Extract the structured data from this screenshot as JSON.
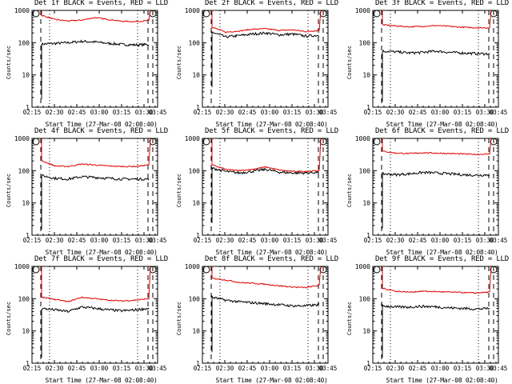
{
  "chart_data": [
    {
      "type": "line",
      "title": "Det 1f BLACK = Events, RED = LLD",
      "ylabel": "Counts/sec",
      "xlabel": "Start Time (27-Mar-08 02:08:40)",
      "xticks": [
        "02:15",
        "02:30",
        "02:45",
        "03:00",
        "03:15",
        "03:30",
        "03:45"
      ],
      "yticks": [
        "1",
        "10",
        "100",
        "1000"
      ],
      "yscale": "log",
      "ylim": [
        1,
        1000
      ],
      "series": [
        {
          "color": "#000000",
          "values": [
            90,
            95,
            100,
            110,
            105,
            95,
            88,
            85,
            88
          ]
        },
        {
          "color": "#e00000",
          "values": [
            700,
            520,
            470,
            500,
            600,
            520,
            460,
            450,
            480
          ]
        }
      ]
    },
    {
      "type": "line",
      "title": "Det 2f BLACK = Events, RED = LLD",
      "ylabel": "Counts/sec",
      "xlabel": "Start Time (27-Mar-08 02:08:40)",
      "xticks": [
        "02:15",
        "02:30",
        "02:45",
        "03:00",
        "03:15",
        "03:30",
        "03:45"
      ],
      "yticks": [
        "1",
        "10",
        "100",
        "1000"
      ],
      "yscale": "log",
      "ylim": [
        1,
        1000
      ],
      "series": [
        {
          "color": "#000000",
          "values": [
            210,
            150,
            165,
            185,
            200,
            175,
            185,
            160,
            170
          ]
        },
        {
          "color": "#e00000",
          "values": [
            300,
            210,
            230,
            260,
            270,
            240,
            250,
            220,
            240
          ]
        }
      ]
    },
    {
      "type": "line",
      "title": "Det 3f BLACK = Events, RED = LLD",
      "ylabel": "Counts/sec",
      "xlabel": "Start Time (27-Mar-08 02:08:40)",
      "xticks": [
        "02:15",
        "02:30",
        "02:45",
        "03:00",
        "03:15",
        "03:30",
        "03:45"
      ],
      "yticks": [
        "1",
        "10",
        "100",
        "1000"
      ],
      "yscale": "log",
      "ylim": [
        1,
        1000
      ],
      "series": [
        {
          "color": "#000000",
          "values": [
            55,
            52,
            48,
            50,
            55,
            50,
            48,
            46,
            45
          ]
        },
        {
          "color": "#e00000",
          "values": [
            360,
            330,
            310,
            320,
            340,
            320,
            300,
            290,
            290
          ]
        }
      ]
    },
    {
      "type": "line",
      "title": "Det 4f BLACK = Events, RED = LLD",
      "ylabel": "Counts/sec",
      "xlabel": "Start Time (27-Mar-08 02:08:40)",
      "xticks": [
        "02:15",
        "02:30",
        "02:45",
        "03:00",
        "03:15",
        "03:30",
        "03:45"
      ],
      "yticks": [
        "1",
        "10",
        "100",
        "1000"
      ],
      "yscale": "log",
      "ylim": [
        1,
        1000
      ],
      "series": [
        {
          "color": "#000000",
          "values": [
            70,
            58,
            55,
            65,
            62,
            58,
            55,
            55,
            55
          ]
        },
        {
          "color": "#e00000",
          "values": [
            200,
            140,
            135,
            160,
            150,
            140,
            135,
            135,
            150
          ]
        }
      ]
    },
    {
      "type": "line",
      "title": "Det 5f BLACK = Events, RED = LLD",
      "ylabel": "Counts/sec",
      "xlabel": "Start Time (27-Mar-08 02:08:40)",
      "xticks": [
        "02:15",
        "02:30",
        "02:45",
        "03:00",
        "03:15",
        "03:30",
        "03:45"
      ],
      "yticks": [
        "1",
        "10",
        "100",
        "1000"
      ],
      "yscale": "log",
      "ylim": [
        1,
        1000
      ],
      "series": [
        {
          "color": "#000000",
          "values": [
            120,
            95,
            85,
            95,
            110,
            90,
            85,
            85,
            90
          ]
        },
        {
          "color": "#e00000",
          "values": [
            150,
            110,
            100,
            110,
            130,
            105,
            95,
            95,
            100
          ]
        }
      ]
    },
    {
      "type": "line",
      "title": "Det 6f BLACK = Events, RED = LLD",
      "ylabel": "Counts/sec",
      "xlabel": "Start Time (27-Mar-08 02:08:40)",
      "xticks": [
        "02:15",
        "02:30",
        "02:45",
        "03:00",
        "03:15",
        "03:30",
        "03:45"
      ],
      "yticks": [
        "1",
        "10",
        "100",
        "1000"
      ],
      "yscale": "log",
      "ylim": [
        1,
        1000
      ],
      "series": [
        {
          "color": "#000000",
          "values": [
            80,
            75,
            80,
            88,
            85,
            80,
            75,
            72,
            75
          ]
        },
        {
          "color": "#e00000",
          "values": [
            400,
            350,
            340,
            360,
            350,
            340,
            330,
            320,
            330
          ]
        }
      ]
    },
    {
      "type": "line",
      "title": "Det 7f BLACK = Events, RED = LLD",
      "ylabel": "Counts/sec",
      "xlabel": "Start Time (27-Mar-08 02:08:40)",
      "xticks": [
        "02:15",
        "02:30",
        "02:45",
        "03:00",
        "03:15",
        "03:30",
        "03:45"
      ],
      "yticks": [
        "1",
        "10",
        "100",
        "1000"
      ],
      "yscale": "log",
      "ylim": [
        1,
        1000
      ],
      "series": [
        {
          "color": "#000000",
          "values": [
            50,
            45,
            40,
            55,
            50,
            45,
            42,
            45,
            50
          ]
        },
        {
          "color": "#e00000",
          "values": [
            110,
            95,
            80,
            110,
            100,
            90,
            85,
            90,
            100
          ]
        }
      ]
    },
    {
      "type": "line",
      "title": "Det 8f BLACK = Events, RED = LLD",
      "ylabel": "Counts/sec",
      "xlabel": "Start Time (27-Mar-08 02:08:40)",
      "xticks": [
        "02:15",
        "02:30",
        "02:45",
        "03:00",
        "03:15",
        "03:30",
        "03:45"
      ],
      "yticks": [
        "1",
        "10",
        "100",
        "1000"
      ],
      "yscale": "log",
      "ylim": [
        1,
        1000
      ],
      "series": [
        {
          "color": "#000000",
          "values": [
            110,
            90,
            80,
            75,
            70,
            65,
            60,
            60,
            65
          ]
        },
        {
          "color": "#e00000",
          "values": [
            430,
            380,
            320,
            300,
            280,
            250,
            230,
            220,
            260
          ]
        }
      ]
    },
    {
      "type": "line",
      "title": "Det 9f BLACK = Events, RED = LLD",
      "ylabel": "Counts/sec",
      "xlabel": "Start Time (27-Mar-08 02:08:40)",
      "xticks": [
        "02:15",
        "02:30",
        "02:45",
        "03:00",
        "03:15",
        "03:30",
        "03:45"
      ],
      "yticks": [
        "1",
        "10",
        "100",
        "1000"
      ],
      "yscale": "log",
      "ylim": [
        1,
        1000
      ],
      "series": [
        {
          "color": "#000000",
          "values": [
            60,
            55,
            55,
            58,
            56,
            52,
            50,
            48,
            50
          ]
        },
        {
          "color": "#e00000",
          "values": [
            210,
            170,
            160,
            170,
            165,
            160,
            155,
            150,
            160
          ]
        }
      ]
    }
  ]
}
